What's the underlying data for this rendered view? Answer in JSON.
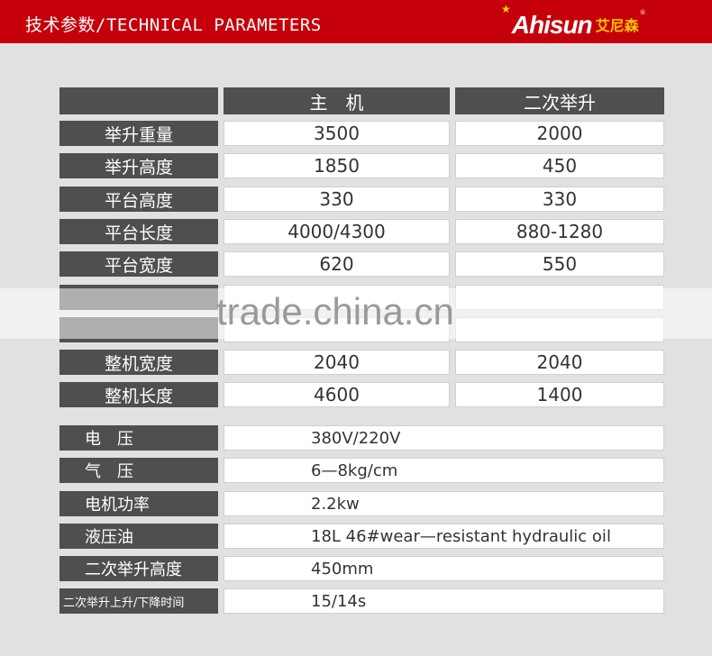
{
  "header": {
    "title": "技术参数/TECHNICAL PARAMETERS",
    "logo_en": "Ahisun",
    "logo_cn": "艾尼森",
    "colors": {
      "header_bg": "#c6000b",
      "label_bg": "#4f4f4f",
      "logo_cn": "#ffc400"
    }
  },
  "table1": {
    "columns": [
      "",
      "主　机",
      "二次举升"
    ],
    "rows": [
      {
        "label": "举升重量",
        "main": "3500",
        "secondary": "2000"
      },
      {
        "label": "举升高度",
        "main": "1850",
        "secondary": "450"
      },
      {
        "label": "平台高度",
        "main": "330",
        "secondary": "330"
      },
      {
        "label": "平台长度",
        "main": "4000/4300",
        "secondary": "880-1280"
      },
      {
        "label": "平台宽度",
        "main": "620",
        "secondary": "550"
      },
      {
        "label": "",
        "main": "",
        "secondary": ""
      },
      {
        "label": "",
        "main": "",
        "secondary": ""
      },
      {
        "label": "整机宽度",
        "main": "2040",
        "secondary": "2040"
      },
      {
        "label": "整机长度",
        "main": "4600",
        "secondary": "1400"
      }
    ]
  },
  "table2": {
    "rows": [
      {
        "label": "电　压",
        "value": "380V/220V"
      },
      {
        "label": "气　压",
        "value": "6—8kg/cm"
      },
      {
        "label": "电机功率",
        "value": "2.2kw"
      },
      {
        "label": "液压油",
        "value": "18L 46#wear—resistant hydraulic oil"
      },
      {
        "label": "二次举升高度",
        "value": "450mm"
      },
      {
        "label": "二次举升上升/下降时间",
        "value": "15/14s"
      }
    ]
  },
  "watermark": "trade.china.cn"
}
